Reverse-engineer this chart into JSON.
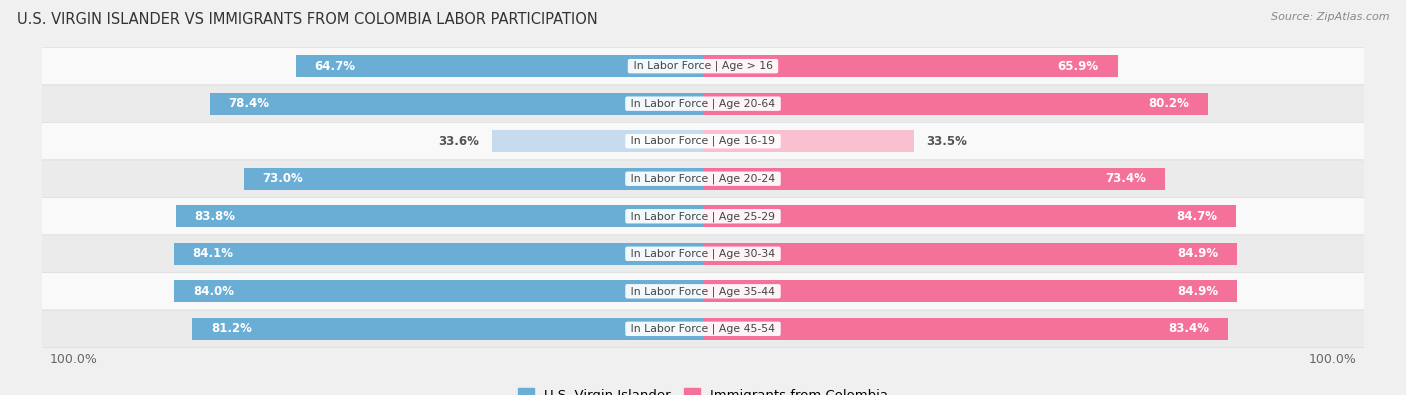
{
  "title": "U.S. VIRGIN ISLANDER VS IMMIGRANTS FROM COLOMBIA LABOR PARTICIPATION",
  "source": "Source: ZipAtlas.com",
  "categories": [
    "In Labor Force | Age > 16",
    "In Labor Force | Age 20-64",
    "In Labor Force | Age 16-19",
    "In Labor Force | Age 20-24",
    "In Labor Force | Age 25-29",
    "In Labor Force | Age 30-34",
    "In Labor Force | Age 35-44",
    "In Labor Force | Age 45-54"
  ],
  "virgin_islander": [
    64.7,
    78.4,
    33.6,
    73.0,
    83.8,
    84.1,
    84.0,
    81.2
  ],
  "colombia": [
    65.9,
    80.2,
    33.5,
    73.4,
    84.7,
    84.9,
    84.9,
    83.4
  ],
  "vi_color": "#6aaed6",
  "co_color": "#f4729a",
  "vi_color_light": "#c6dcee",
  "co_color_light": "#f9c0d0",
  "bar_height": 0.58,
  "background_color": "#f0f0f0",
  "row_bg_light": "#f9f9f9",
  "row_bg_dark": "#ebebeb",
  "max_value": 100.0,
  "legend_vi": "U.S. Virgin Islander",
  "legend_co": "Immigrants from Colombia"
}
